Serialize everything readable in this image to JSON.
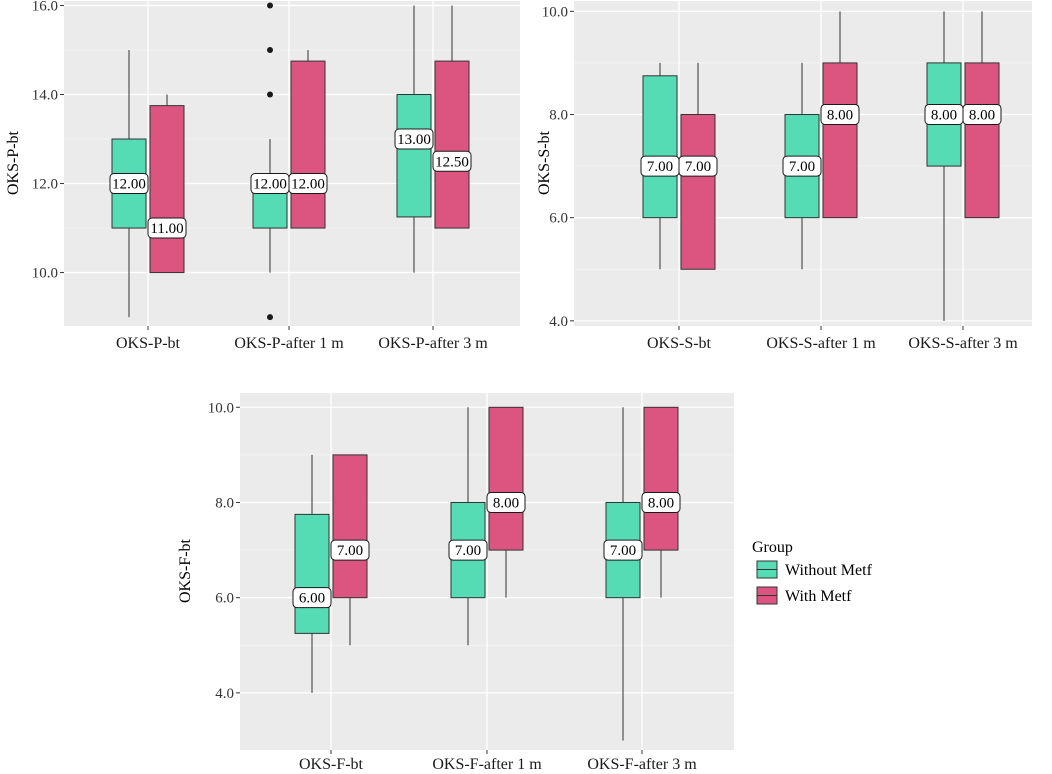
{
  "colors": {
    "without": "#55dcb5",
    "with": "#dc5580",
    "panel": "#ebebeb"
  },
  "legend": {
    "title": "Group",
    "items": [
      {
        "label": "Without Metf",
        "key": "without"
      },
      {
        "label": "With Metf",
        "key": "with"
      }
    ]
  },
  "chart_data": [
    {
      "type": "box",
      "ylabel": "OKS-P-bt",
      "ylim": [
        8.8,
        16.1
      ],
      "yticks": [
        10,
        12,
        14,
        16
      ],
      "ytick_labels": [
        "10.0",
        "12.0",
        "14.0",
        "16.0"
      ],
      "categories": [
        "OKS-P-bt",
        "OKS-P-after 1 m",
        "OKS-P-after 3 m"
      ],
      "series": [
        {
          "name": "Without Metf",
          "boxes": [
            {
              "min": 9,
              "q1": 11,
              "median": 12,
              "q3": 13,
              "max": 15,
              "outliers": [],
              "label": "12.00"
            },
            {
              "min": 10,
              "q1": 11,
              "median": 12,
              "q3": 12,
              "max": 13,
              "outliers": [
                9,
                14,
                15,
                16
              ],
              "label": "12.00"
            },
            {
              "min": 10,
              "q1": 11.25,
              "median": 13,
              "q3": 14,
              "max": 16,
              "outliers": [],
              "label": "13.00"
            }
          ]
        },
        {
          "name": "With Metf",
          "boxes": [
            {
              "min": 10,
              "q1": 10,
              "median": 11,
              "q3": 13.75,
              "max": 14,
              "outliers": [],
              "label": "11.00"
            },
            {
              "min": 11,
              "q1": 11,
              "median": 12,
              "q3": 14.75,
              "max": 15,
              "outliers": [],
              "label": "12.00"
            },
            {
              "min": 11,
              "q1": 11,
              "median": 12.5,
              "q3": 14.75,
              "max": 16,
              "outliers": [],
              "label": "12.50"
            }
          ]
        }
      ]
    },
    {
      "type": "box",
      "ylabel": "OKS-S-bt",
      "ylim": [
        3.9,
        10.2
      ],
      "yticks": [
        4,
        6,
        8,
        10
      ],
      "ytick_labels": [
        "4.0",
        "6.0",
        "8.0",
        "10.0"
      ],
      "categories": [
        "OKS-S-bt",
        "OKS-S-after 1 m",
        "OKS-S-after 3 m"
      ],
      "series": [
        {
          "name": "Without Metf",
          "boxes": [
            {
              "min": 5,
              "q1": 6,
              "median": 7,
              "q3": 8.75,
              "max": 9,
              "outliers": [],
              "label": "7.00"
            },
            {
              "min": 5,
              "q1": 6,
              "median": 7,
              "q3": 8,
              "max": 9,
              "outliers": [],
              "label": "7.00"
            },
            {
              "min": 4,
              "q1": 7,
              "median": 8,
              "q3": 9,
              "max": 10,
              "outliers": [],
              "label": "8.00"
            }
          ]
        },
        {
          "name": "With Metf",
          "boxes": [
            {
              "min": 5,
              "q1": 5,
              "median": 7,
              "q3": 8,
              "max": 9,
              "outliers": [],
              "label": "7.00"
            },
            {
              "min": 6,
              "q1": 6,
              "median": 8,
              "q3": 9,
              "max": 10,
              "outliers": [],
              "label": "8.00"
            },
            {
              "min": 6,
              "q1": 6,
              "median": 8,
              "q3": 9,
              "max": 10,
              "outliers": [],
              "label": "8.00"
            }
          ]
        }
      ]
    },
    {
      "type": "box",
      "ylabel": "OKS-F-bt",
      "ylim": [
        2.8,
        10.3
      ],
      "yticks": [
        4,
        6,
        8,
        10
      ],
      "ytick_labels": [
        "4.0",
        "6.0",
        "8.0",
        "10.0"
      ],
      "categories": [
        "OKS-F-bt",
        "OKS-F-after 1 m",
        "OKS-F-after 3 m"
      ],
      "series": [
        {
          "name": "Without Metf",
          "boxes": [
            {
              "min": 4,
              "q1": 5.25,
              "median": 6,
              "q3": 7.75,
              "max": 9,
              "outliers": [],
              "label": "6.00"
            },
            {
              "min": 5,
              "q1": 6,
              "median": 7,
              "q3": 8,
              "max": 10,
              "outliers": [],
              "label": "7.00"
            },
            {
              "min": 3,
              "q1": 6,
              "median": 7,
              "q3": 8,
              "max": 10,
              "outliers": [],
              "label": "7.00"
            }
          ]
        },
        {
          "name": "With Metf",
          "boxes": [
            {
              "min": 5,
              "q1": 6,
              "median": 7,
              "q3": 9,
              "max": 9,
              "outliers": [],
              "label": "7.00"
            },
            {
              "min": 6,
              "q1": 7,
              "median": 8,
              "q3": 10,
              "max": 10,
              "outliers": [],
              "label": "8.00"
            },
            {
              "min": 6,
              "q1": 7,
              "median": 8,
              "q3": 10,
              "max": 10,
              "outliers": [],
              "label": "8.00"
            }
          ]
        }
      ]
    }
  ]
}
